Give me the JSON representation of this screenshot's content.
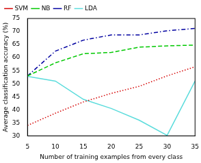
{
  "chart_data": {
    "type": "line",
    "x_label": "Number of training examples from every class",
    "y_label": "Average classification accuracy (%)",
    "x": [
      5,
      10,
      15,
      20,
      25,
      30,
      35
    ],
    "series": [
      {
        "name": "SVM",
        "color": "#d40000",
        "line_style": "dotted",
        "values": [
          34,
          38.7,
          43,
          46.3,
          49,
          53,
          56.5
        ]
      },
      {
        "name": "NB",
        "color": "#00c800",
        "line_style": "dashed",
        "values": [
          53,
          58,
          61.5,
          62,
          64,
          64.5,
          64.8
        ]
      },
      {
        "name": "RF",
        "color": "#0000a0",
        "line_style": "dashdot",
        "values": [
          53,
          62.5,
          66.7,
          68.7,
          68.7,
          70.3,
          71.2
        ]
      },
      {
        "name": "LDA",
        "color": "#5cdcdc",
        "line_style": "solid",
        "values": [
          52.8,
          51,
          44,
          40.5,
          36,
          30.2,
          51
        ]
      }
    ],
    "xlim": [
      5,
      35
    ],
    "xticks": [
      5,
      10,
      15,
      20,
      25,
      30,
      35
    ],
    "ylim": [
      30,
      75
    ],
    "yticks": [
      30,
      35,
      40,
      45,
      50,
      55,
      60,
      65,
      70,
      75
    ],
    "grid": false,
    "legend": "upper left"
  }
}
